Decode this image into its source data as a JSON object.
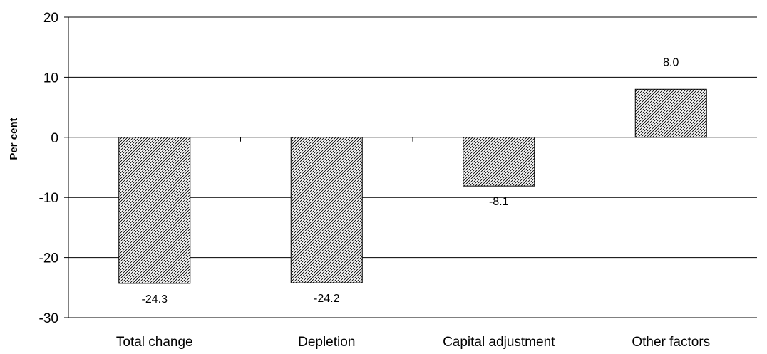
{
  "chart_data": {
    "type": "bar",
    "title": "",
    "xlabel": "",
    "ylabel": "Per cent",
    "categories": [
      "Total change",
      "Depletion",
      "Capital adjustment",
      "Other factors"
    ],
    "values": [
      -24.3,
      -24.2,
      -8.1,
      8.0
    ],
    "data_labels": [
      "-24.3",
      "-24.2",
      "-8.1",
      "8.0"
    ],
    "ylim": [
      -30,
      20
    ],
    "yticks": [
      20,
      10,
      0,
      -10,
      -20,
      -30
    ],
    "ytick_labels": [
      "20",
      "10",
      "0",
      "-10",
      "-20",
      "-30"
    ],
    "grid": "horizontal",
    "bar_fill": "diagonal hatch",
    "colors": {
      "bar_hatch": "#000000",
      "bar_background": "#ffffff",
      "grid": "#000000",
      "axis": "#000000"
    }
  }
}
